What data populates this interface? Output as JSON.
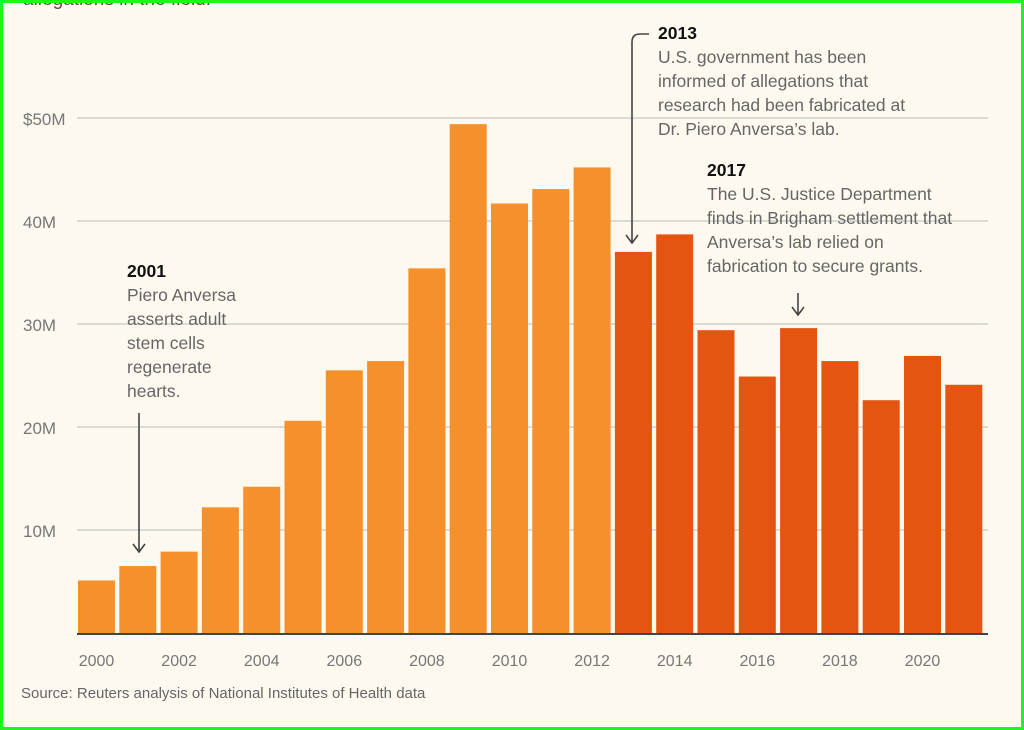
{
  "intro_text_fragment": "allegations in the field.",
  "chart_data": {
    "type": "bar",
    "categories": [
      2000,
      2001,
      2002,
      2003,
      2004,
      2005,
      2006,
      2007,
      2008,
      2009,
      2010,
      2011,
      2012,
      2013,
      2014,
      2015,
      2016,
      2017,
      2018,
      2019,
      2020,
      2021
    ],
    "values": [
      5.1,
      6.5,
      7.9,
      12.2,
      14.2,
      20.6,
      25.5,
      26.4,
      35.4,
      49.4,
      41.7,
      43.1,
      45.2,
      37.0,
      38.7,
      29.4,
      24.9,
      29.6,
      26.4,
      22.6,
      26.9,
      24.1
    ],
    "unit": "millions of dollars",
    "ylim": [
      0,
      50
    ],
    "y_ticks": [
      10,
      20,
      30,
      40,
      50
    ],
    "y_tick_labels": [
      "10M",
      "20M",
      "30M",
      "40M",
      "$50M"
    ],
    "x_tick_labels": [
      "2000",
      "2002",
      "2004",
      "2006",
      "2008",
      "2010",
      "2012",
      "2014",
      "2016",
      "2018",
      "2020"
    ],
    "grid": true,
    "colors": {
      "before_2013": "#f5902a",
      "from_2013": "#e35511"
    },
    "annotations": [
      {
        "year": "2001",
        "lines": [
          "Piero Anversa",
          "asserts adult",
          "stem cells",
          "regenerate",
          "hearts."
        ]
      },
      {
        "year": "2013",
        "lines": [
          "U.S. government has been",
          "informed of allegations that",
          "research had been fabricated at",
          "Dr. Piero Anversa’s lab."
        ]
      },
      {
        "year": "2017",
        "lines": [
          "The U.S. Justice Department",
          "finds in Brigham settlement that",
          "Anversa’s lab relied on",
          "fabrication to secure grants."
        ]
      }
    ]
  },
  "source": "Source: Reuters analysis of National Institutes of Health data"
}
